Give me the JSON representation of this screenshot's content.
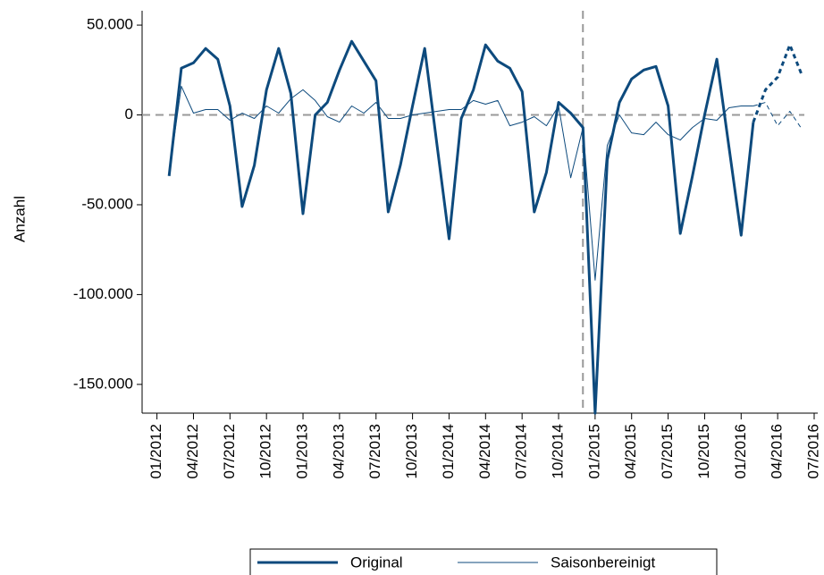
{
  "chart_data": {
    "type": "line",
    "ylabel": "Anzahl",
    "x": [
      "02/2012",
      "03/2012",
      "04/2012",
      "05/2012",
      "06/2012",
      "07/2012",
      "08/2012",
      "09/2012",
      "10/2012",
      "11/2012",
      "12/2012",
      "01/2013",
      "02/2013",
      "03/2013",
      "04/2013",
      "05/2013",
      "06/2013",
      "07/2013",
      "08/2013",
      "09/2013",
      "10/2013",
      "11/2013",
      "12/2013",
      "01/2014",
      "02/2014",
      "03/2014",
      "04/2014",
      "05/2014",
      "06/2014",
      "07/2014",
      "08/2014",
      "09/2014",
      "10/2014",
      "11/2014",
      "12/2014",
      "01/2015",
      "02/2015",
      "03/2015",
      "04/2015",
      "05/2015",
      "06/2015",
      "07/2015",
      "08/2015",
      "09/2015",
      "10/2015",
      "11/2015",
      "12/2015",
      "01/2016",
      "02/2016",
      "03/2016",
      "04/2016",
      "05/2016",
      "06/2016"
    ],
    "series": [
      {
        "name": "Original",
        "color": "#0d4a7d",
        "width": 3,
        "values": [
          -34000,
          26000,
          29000,
          37000,
          31000,
          5000,
          -51000,
          -28000,
          14000,
          37000,
          12000,
          -55000,
          0,
          7000,
          25000,
          41000,
          30000,
          19000,
          -54000,
          -28000,
          5000,
          37000,
          -16000,
          -69000,
          -2000,
          14000,
          39000,
          30000,
          26000,
          13000,
          -54000,
          -32000,
          7000,
          1000,
          -7000,
          -166000,
          -25000,
          7000,
          20000,
          25000,
          27000,
          5000,
          -66000,
          -34000,
          0,
          31000,
          -18000,
          -67000,
          -4000,
          14000,
          21000,
          39000,
          22000
        ]
      },
      {
        "name": "Saisonbereinigt",
        "color": "#0d4a7d",
        "width": 1,
        "values": [
          -33000,
          16000,
          1000,
          3000,
          3000,
          -3000,
          1000,
          -2000,
          5000,
          1000,
          9000,
          14000,
          8000,
          -1000,
          -4000,
          5000,
          1000,
          7000,
          -2000,
          -2000,
          0,
          1000,
          2000,
          3000,
          3000,
          8000,
          6000,
          8000,
          -6000,
          -4000,
          -1000,
          -6000,
          5000,
          -35000,
          -7000,
          -92000,
          -17000,
          0,
          -10000,
          -11000,
          -4000,
          -11000,
          -14000,
          -7000,
          -2000,
          -3000,
          4000,
          5000,
          5000,
          7000,
          -6000,
          2000,
          -8000
        ]
      }
    ],
    "dashed_from": "02/2016",
    "hline": 0,
    "vline": "12/2014",
    "xlim": [
      "12/2011",
      "07/2016"
    ],
    "xticks": [
      "01/2012",
      "04/2012",
      "07/2012",
      "10/2012",
      "01/2013",
      "04/2013",
      "07/2013",
      "10/2013",
      "01/2014",
      "04/2014",
      "07/2014",
      "10/2014",
      "01/2015",
      "04/2015",
      "07/2015",
      "10/2015",
      "01/2016",
      "04/2016",
      "07/2016"
    ],
    "ylim": [
      -166000,
      58000
    ],
    "yticks": [
      {
        "value": 50000,
        "label": "50.000"
      },
      0,
      {
        "value": -50000,
        "label": "-50.000"
      },
      {
        "value": -100000,
        "label": "-100.000"
      },
      {
        "value": -150000,
        "label": "-150.000"
      }
    ],
    "legend": "bottom"
  }
}
